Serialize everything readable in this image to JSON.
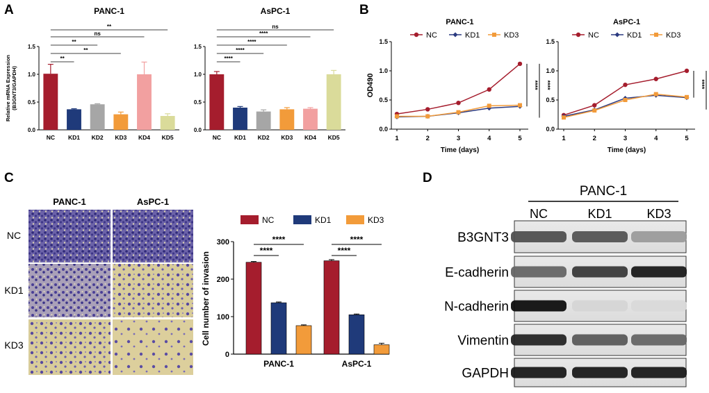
{
  "colors": {
    "NC": "#a51d2d",
    "KD1": "#1f3a7a",
    "KD2": "#a6a6a6",
    "KD3": "#f29b3a",
    "KD4": "#f2a0a0",
    "KD5": "#dadb9a",
    "line_NC": "#a51d2d",
    "line_KD1": "#2b3a80",
    "line_KD3": "#f29b3a"
  },
  "panels": {
    "A": {
      "label": "A",
      "ylabel_line1": "Relative mRNA Expression",
      "ylabel_line2": "(B3GNT3/GAPDH)"
    },
    "B": {
      "label": "B",
      "ylabel": "OD490",
      "xlabel": "Time (days)"
    },
    "C": {
      "label": "C",
      "col_headers": [
        "PANC-1",
        "AsPC-1"
      ],
      "row_labels": [
        "NC",
        "KD1",
        "KD3"
      ]
    },
    "D": {
      "label": "D",
      "header": "PANC-1",
      "lanes": [
        "NC",
        "KD1",
        "KD3"
      ],
      "rows": [
        "B3GNT3",
        "E-cadherin",
        "N-cadherin",
        "Vimentin",
        "GAPDH"
      ],
      "intensities": [
        [
          0.7,
          0.68,
          0.35
        ],
        [
          0.6,
          0.8,
          0.95
        ],
        [
          1.0,
          0.08,
          0.06
        ],
        [
          0.9,
          0.65,
          0.6
        ],
        [
          0.95,
          0.95,
          0.95
        ]
      ]
    }
  },
  "chart_data": [
    {
      "id": "A1",
      "type": "bar",
      "title": "PANC-1",
      "categories": [
        "NC",
        "KD1",
        "KD2",
        "KD3",
        "KD4",
        "KD5"
      ],
      "values": [
        1.01,
        0.37,
        0.46,
        0.28,
        1.0,
        0.25
      ],
      "errors": [
        0.17,
        0.01,
        0.01,
        0.04,
        0.22,
        0.04
      ],
      "ylim": [
        0,
        1.5
      ],
      "yticks": [
        "0.0",
        "0.5",
        "1.0",
        "1.5"
      ],
      "significance": [
        {
          "from": 0,
          "to": 1,
          "label": "**"
        },
        {
          "from": 0,
          "to": 3,
          "label": "**"
        },
        {
          "from": 0,
          "to": 2,
          "label": "**"
        },
        {
          "from": 0,
          "to": 4,
          "label": "ns"
        },
        {
          "from": 0,
          "to": 5,
          "label": "**"
        }
      ]
    },
    {
      "id": "A2",
      "type": "bar",
      "title": "AsPC-1",
      "categories": [
        "NC",
        "KD1",
        "KD2",
        "KD3",
        "KD4",
        "KD5"
      ],
      "values": [
        1.0,
        0.4,
        0.33,
        0.37,
        0.38,
        1.0
      ],
      "errors": [
        0.05,
        0.02,
        0.03,
        0.03,
        0.02,
        0.07
      ],
      "ylim": [
        0,
        1.5
      ],
      "yticks": [
        "0.0",
        "0.5",
        "1.0",
        "1.5"
      ],
      "significance": [
        {
          "from": 0,
          "to": 1,
          "label": "****"
        },
        {
          "from": 0,
          "to": 2,
          "label": "****"
        },
        {
          "from": 0,
          "to": 3,
          "label": "****"
        },
        {
          "from": 0,
          "to": 4,
          "label": "****"
        },
        {
          "from": 0,
          "to": 5,
          "label": "ns"
        }
      ]
    },
    {
      "id": "B1",
      "type": "line",
      "title": "PANC-1",
      "x": [
        1,
        2,
        3,
        4,
        5
      ],
      "series": [
        {
          "name": "NC",
          "values": [
            0.26,
            0.34,
            0.45,
            0.68,
            1.12
          ]
        },
        {
          "name": "KD1",
          "values": [
            0.21,
            0.22,
            0.28,
            0.36,
            0.39
          ]
        },
        {
          "name": "KD3",
          "values": [
            0.22,
            0.22,
            0.29,
            0.4,
            0.41
          ]
        }
      ],
      "xlabel": "Time (days)",
      "ylabel": "OD490",
      "ylim": [
        0,
        1.5
      ],
      "yticks": [
        "0.0",
        "0.5",
        "1.0",
        "1.5"
      ],
      "significance": [
        "****",
        "****"
      ]
    },
    {
      "id": "B2",
      "type": "line",
      "title": "AsPC-1",
      "x": [
        1,
        2,
        3,
        4,
        5
      ],
      "series": [
        {
          "name": "NC",
          "values": [
            0.24,
            0.41,
            0.76,
            0.86,
            1.0
          ]
        },
        {
          "name": "KD1",
          "values": [
            0.22,
            0.33,
            0.53,
            0.58,
            0.54
          ]
        },
        {
          "name": "KD3",
          "values": [
            0.2,
            0.32,
            0.5,
            0.6,
            0.55
          ]
        }
      ],
      "xlabel": "Time (days)",
      "ylim": [
        0,
        1.5
      ],
      "yticks": [
        "0.0",
        "0.5",
        "1.0",
        "1.5"
      ],
      "significance": [
        "****",
        "****"
      ]
    },
    {
      "id": "C",
      "type": "bar",
      "categories": [
        "PANC-1",
        "AsPC-1"
      ],
      "series": [
        {
          "name": "NC",
          "values": [
            245,
            249
          ],
          "errors": [
            2,
            3
          ]
        },
        {
          "name": "KD1",
          "values": [
            137,
            105
          ],
          "errors": [
            2,
            2
          ]
        },
        {
          "name": "KD3",
          "values": [
            76,
            25
          ],
          "errors": [
            2,
            4
          ]
        }
      ],
      "ylabel": "Cell number of invasion",
      "ylim": [
        0,
        300
      ],
      "yticks": [
        "0",
        "100",
        "200",
        "300"
      ],
      "significance": [
        {
          "group": 0,
          "from": 0,
          "to": 1,
          "label": "****"
        },
        {
          "group": 0,
          "from": 0,
          "to": 2,
          "label": "****"
        },
        {
          "group": 1,
          "from": 0,
          "to": 1,
          "label": "****"
        },
        {
          "group": 1,
          "from": 0,
          "to": 2,
          "label": "****"
        }
      ]
    }
  ]
}
